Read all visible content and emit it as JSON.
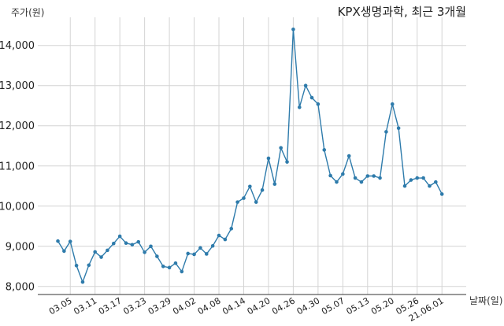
{
  "chart_data": {
    "type": "line",
    "title": "KPX생명과학, 최근 3개월",
    "ylabel": "주가(원)",
    "xlabel": "날짜(일)",
    "ylim": [
      7800,
      14700
    ],
    "yticks": [
      8000,
      9000,
      10000,
      11000,
      12000,
      13000,
      14000
    ],
    "ytick_labels": [
      "8,000",
      "9,000",
      "10,000",
      "11,000",
      "12,000",
      "13,000",
      "14,000"
    ],
    "xtick_labels": [
      "03.05",
      "03.11",
      "03.17",
      "03.23",
      "03.29",
      "04.02",
      "04.08",
      "04.14",
      "04.20",
      "04.26",
      "04.30",
      "05.07",
      "05.13",
      "05.20",
      "05.26",
      "21.06.01"
    ],
    "xtick_index": [
      2,
      6,
      10,
      14,
      18,
      22,
      26,
      30,
      34,
      38,
      42,
      46,
      50,
      54,
      58,
      62
    ],
    "grid": true,
    "series_color": "#2e7bab",
    "values": [
      9130,
      8880,
      9120,
      8520,
      8110,
      8530,
      8860,
      8730,
      8900,
      9070,
      9250,
      9080,
      9040,
      9110,
      8850,
      9000,
      8750,
      8500,
      8470,
      8580,
      8370,
      8820,
      8800,
      8960,
      8810,
      9010,
      9270,
      9170,
      9440,
      10100,
      10200,
      10490,
      10100,
      10400,
      11190,
      10550,
      11450,
      11100,
      14400,
      12460,
      13000,
      12700,
      12540,
      11400,
      10760,
      10600,
      10800,
      11250,
      10700,
      10600,
      10750,
      10750,
      10700,
      11850,
      12540,
      11940,
      10500,
      10650,
      10700,
      10700,
      10500,
      10600,
      10300
    ]
  }
}
